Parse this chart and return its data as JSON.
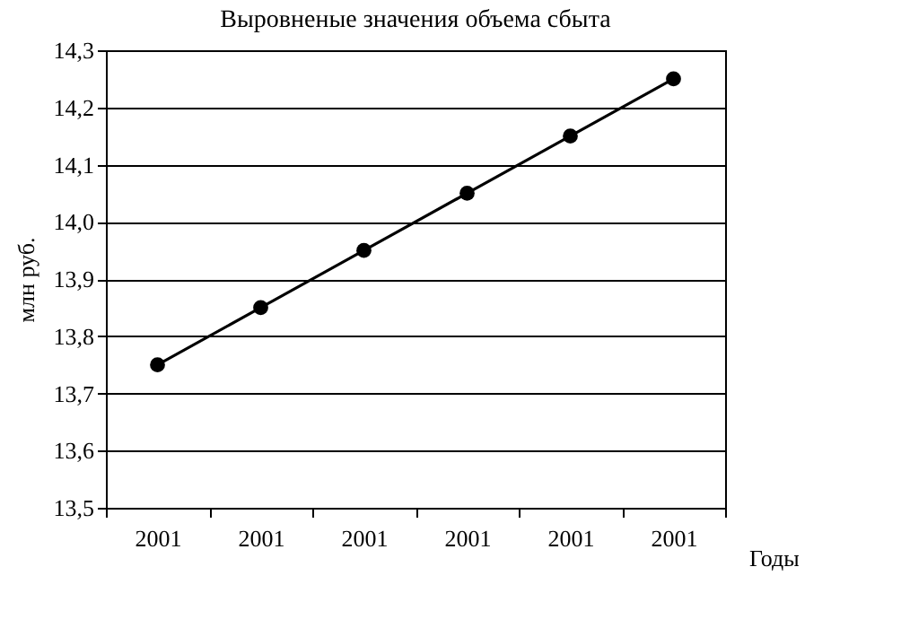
{
  "chart_data": {
    "type": "line",
    "title": "Выровненые значения объема сбыта",
    "xlabel": "Годы",
    "ylabel": "млн руб.",
    "categories": [
      "2001",
      "2001",
      "2001",
      "2001",
      "2001",
      "2001"
    ],
    "series": [
      {
        "color": "#000000",
        "values": [
          13.75,
          13.85,
          13.95,
          14.05,
          14.15,
          14.25
        ]
      }
    ],
    "ylim": [
      13.5,
      14.3
    ],
    "yticks": [
      {
        "value": 13.5,
        "label": "13,5"
      },
      {
        "value": 13.6,
        "label": "13,6"
      },
      {
        "value": 13.7,
        "label": "13,7"
      },
      {
        "value": 13.8,
        "label": "13,8"
      },
      {
        "value": 13.9,
        "label": "13,9"
      },
      {
        "value": 14.0,
        "label": "14,0"
      },
      {
        "value": 14.1,
        "label": "14,1"
      },
      {
        "value": 14.2,
        "label": "14,2"
      },
      {
        "value": 14.3,
        "label": "14,3"
      }
    ],
    "grid": "y",
    "marker": "circle",
    "line_style": "solid"
  }
}
